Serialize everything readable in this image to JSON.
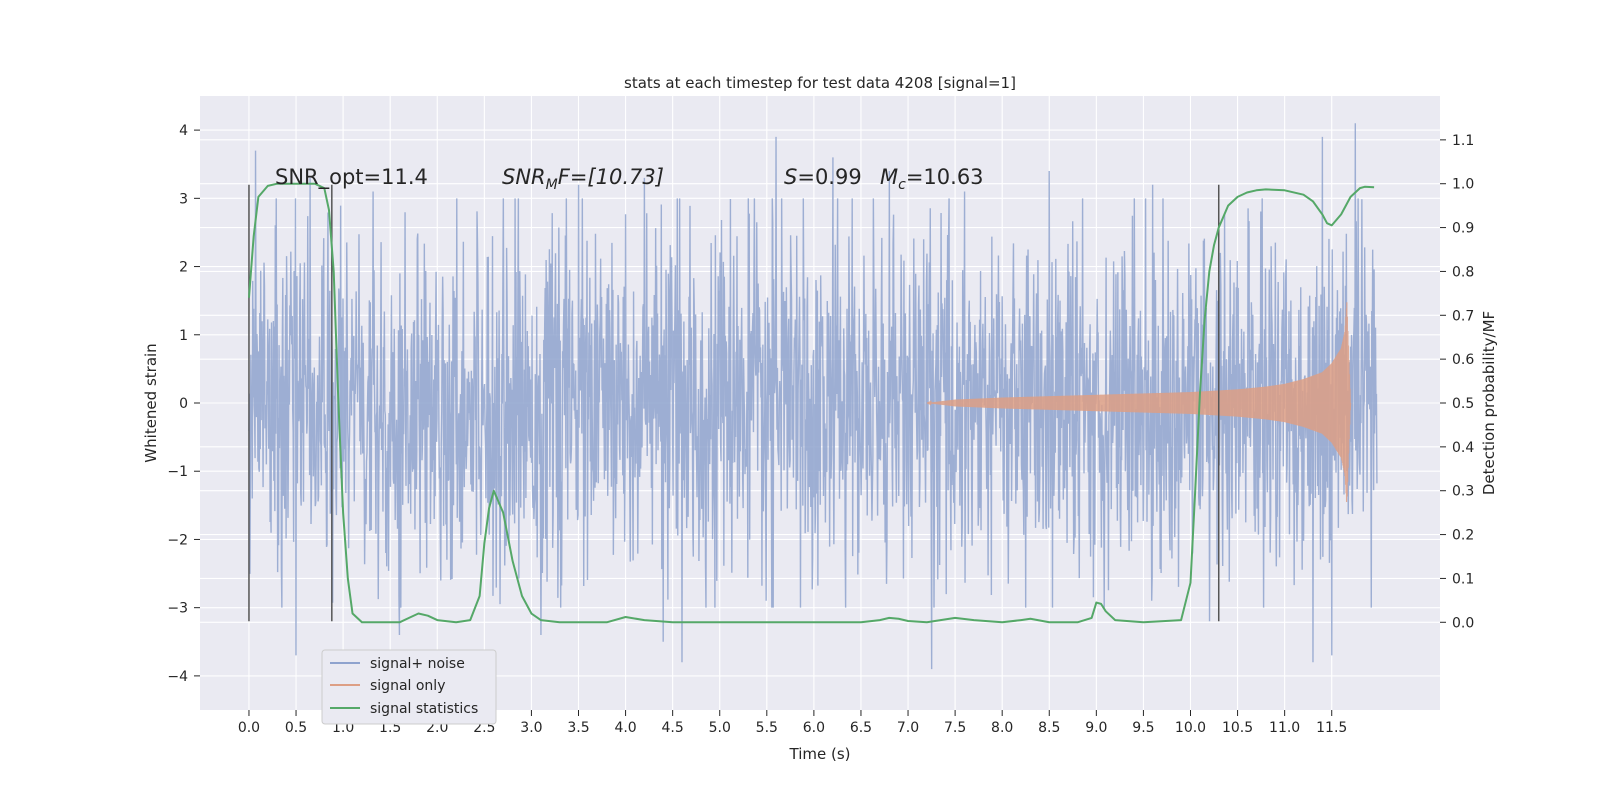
{
  "chart_data": {
    "type": "line",
    "title": "stats at each timestep for test data 4208 [signal=1]",
    "xlabel": "Time (s)",
    "ylabel_left": "Whitened strain",
    "ylabel_right": "Detection probability/MF",
    "xlim": [
      -0.52,
      12.65
    ],
    "ylim_left": [
      -4.5,
      4.5
    ],
    "ylim_right": [
      -0.2,
      1.2
    ],
    "xticks": [
      0.0,
      0.5,
      1.0,
      1.5,
      2.0,
      2.5,
      3.0,
      3.5,
      4.0,
      4.5,
      5.0,
      5.5,
      6.0,
      6.5,
      7.0,
      7.5,
      8.0,
      8.5,
      9.0,
      9.5,
      10.0,
      10.5,
      11.0,
      11.5
    ],
    "yticks_left": [
      -4,
      -3,
      -2,
      -1,
      0,
      1,
      2,
      3,
      4
    ],
    "yticks_right": [
      0.0,
      0.1,
      0.2,
      0.3,
      0.4,
      0.5,
      0.6,
      0.7,
      0.8,
      0.9,
      1.0,
      1.1
    ],
    "grid": true,
    "legend_placement": "lower-left",
    "colors": {
      "plot_background": "#eaeaf2",
      "signal_noise": "#8fa3ce",
      "signal_only": "#dd9f85",
      "signal_statistics": "#55a868",
      "marker_lines": "#555555"
    },
    "series": [
      {
        "name": "signal+ noise",
        "axis": "left",
        "x_range": [
          0.0,
          11.98
        ],
        "envelope_typical": [
          -2.6,
          2.6
        ],
        "peak_values": [
          [
            0.07,
            3.7
          ],
          [
            0.65,
            3.3
          ],
          [
            1.32,
            3.1
          ],
          [
            2.7,
            3.0
          ],
          [
            3.5,
            3.2
          ],
          [
            4.2,
            3.3
          ],
          [
            5.6,
            3.9
          ],
          [
            6.2,
            3.6
          ],
          [
            6.8,
            3.4
          ],
          [
            7.6,
            3.1
          ],
          [
            8.5,
            3.4
          ],
          [
            9.6,
            3.2
          ],
          [
            11.4,
            3.9
          ],
          [
            11.75,
            4.1
          ],
          [
            0.5,
            -3.7
          ],
          [
            1.6,
            -3.4
          ],
          [
            3.1,
            -3.4
          ],
          [
            4.4,
            -3.5
          ],
          [
            4.6,
            -3.8
          ],
          [
            7.25,
            -3.9
          ],
          [
            10.2,
            -3.2
          ],
          [
            11.3,
            -3.8
          ],
          [
            11.5,
            -3.7
          ]
        ]
      },
      {
        "name": "signal only",
        "axis": "left",
        "x": [
          7.2,
          7.5,
          8.0,
          8.5,
          9.0,
          9.5,
          10.0,
          10.5,
          10.8,
          11.0,
          11.2,
          11.4,
          11.5,
          11.6,
          11.64,
          11.66,
          11.7
        ],
        "amplitude": [
          0.0,
          0.05,
          0.08,
          0.1,
          0.12,
          0.14,
          0.16,
          0.2,
          0.24,
          0.28,
          0.35,
          0.45,
          0.58,
          0.8,
          1.05,
          1.5,
          0.0
        ]
      },
      {
        "name": "signal statistics",
        "axis": "right",
        "x": [
          0.0,
          0.05,
          0.1,
          0.2,
          0.3,
          0.5,
          0.7,
          0.8,
          0.85,
          0.9,
          0.95,
          1.0,
          1.05,
          1.1,
          1.2,
          1.3,
          1.6,
          1.7,
          1.8,
          1.9,
          2.0,
          2.2,
          2.35,
          2.45,
          2.5,
          2.55,
          2.6,
          2.7,
          2.8,
          2.9,
          3.0,
          3.1,
          3.3,
          3.8,
          4.0,
          4.2,
          4.5,
          5.0,
          5.5,
          6.0,
          6.5,
          6.7,
          6.8,
          6.9,
          7.0,
          7.2,
          7.5,
          7.7,
          8.0,
          8.2,
          8.3,
          8.5,
          8.8,
          8.95,
          9.0,
          9.05,
          9.1,
          9.2,
          9.5,
          9.9,
          10.0,
          10.05,
          10.1,
          10.15,
          10.2,
          10.25,
          10.3,
          10.4,
          10.5,
          10.6,
          10.7,
          10.8,
          11.0,
          11.2,
          11.3,
          11.4,
          11.45,
          11.5,
          11.6,
          11.7,
          11.8,
          11.85,
          11.95
        ],
        "values": [
          0.74,
          0.88,
          0.97,
          0.995,
          1.0,
          1.0,
          1.0,
          0.99,
          0.94,
          0.8,
          0.5,
          0.25,
          0.1,
          0.02,
          0.0,
          0.0,
          0.0,
          0.01,
          0.02,
          0.015,
          0.005,
          0.0,
          0.005,
          0.06,
          0.18,
          0.26,
          0.3,
          0.25,
          0.14,
          0.06,
          0.02,
          0.005,
          0.0,
          0.0,
          0.012,
          0.005,
          0.0,
          0.0,
          0.0,
          0.0,
          0.0,
          0.005,
          0.01,
          0.008,
          0.003,
          0.0,
          0.01,
          0.005,
          0.0,
          0.005,
          0.008,
          0.0,
          0.0,
          0.01,
          0.045,
          0.042,
          0.025,
          0.005,
          0.0,
          0.005,
          0.09,
          0.3,
          0.52,
          0.69,
          0.8,
          0.86,
          0.9,
          0.95,
          0.97,
          0.98,
          0.985,
          0.987,
          0.985,
          0.975,
          0.96,
          0.93,
          0.91,
          0.905,
          0.93,
          0.97,
          0.99,
          0.993,
          0.992
        ]
      }
    ],
    "vertical_markers": [
      0.0,
      0.88,
      10.3
    ],
    "marker_span": [
      -3.2,
      3.2
    ],
    "annotations": {
      "snr_opt": "SNR_opt=11.4",
      "snr_mf_main": "SNR",
      "snr_mf_sub": "M",
      "snr_mf_tail": "F=[10.73]",
      "s_label": "S",
      "s_value": "=0.99",
      "mc_label": "M",
      "mc_sub": "c",
      "mc_value": "=10.63"
    }
  }
}
